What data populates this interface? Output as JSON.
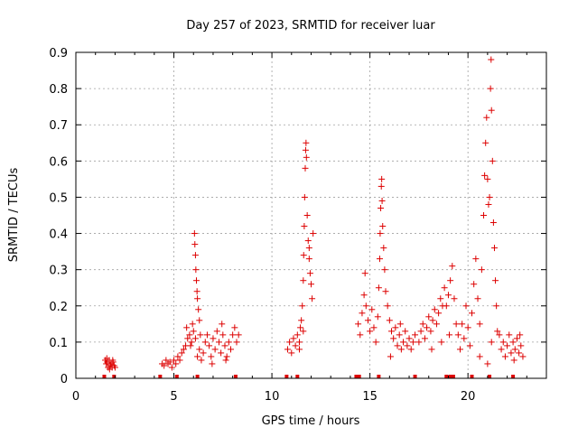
{
  "chart_data": {
    "type": "scatter",
    "title": "Day 257 of 2023, SRMTID for receiver luar",
    "xlabel": "GPS time / hours",
    "ylabel": "SRMTID / TECUs",
    "xlim": [
      0,
      24
    ],
    "ylim": [
      0,
      0.9
    ],
    "xticks": [
      0,
      5,
      10,
      15,
      20
    ],
    "xtick_labels": [
      "0",
      "5",
      "10",
      "15",
      "20"
    ],
    "yticks": [
      0,
      0.1,
      0.2,
      0.3,
      0.4,
      0.5,
      0.6,
      0.7,
      0.8,
      0.9
    ],
    "ytick_labels": [
      "0",
      "0.1",
      "0.2",
      "0.3",
      "0.4",
      "0.5",
      "0.6",
      "0.7",
      "0.8",
      "0.9"
    ],
    "grid": true,
    "marker": "+",
    "marker_color": "#dd0000",
    "series": [
      {
        "name": "SRMTID",
        "points": [
          [
            1.5,
            0.05
          ],
          [
            1.55,
            0.04
          ],
          [
            1.6,
            0.045
          ],
          [
            1.65,
            0.03
          ],
          [
            1.7,
            0.05
          ],
          [
            1.75,
            0.035
          ],
          [
            1.8,
            0.04
          ],
          [
            1.85,
            0.03
          ],
          [
            1.9,
            0.045
          ],
          [
            1.95,
            0.035
          ],
          [
            2.0,
            0.03
          ],
          [
            1.58,
            0.055
          ],
          [
            1.72,
            0.025
          ],
          [
            1.88,
            0.05
          ],
          [
            4.4,
            0.04
          ],
          [
            4.5,
            0.035
          ],
          [
            4.6,
            0.05
          ],
          [
            4.7,
            0.04
          ],
          [
            4.8,
            0.045
          ],
          [
            4.9,
            0.03
          ],
          [
            5.0,
            0.05
          ],
          [
            5.1,
            0.04
          ],
          [
            5.2,
            0.06
          ],
          [
            5.3,
            0.05
          ],
          [
            5.4,
            0.07
          ],
          [
            5.5,
            0.08
          ],
          [
            5.6,
            0.09
          ],
          [
            5.7,
            0.11
          ],
          [
            5.8,
            0.12
          ],
          [
            5.9,
            0.1
          ],
          [
            6.0,
            0.13
          ],
          [
            5.65,
            0.14
          ],
          [
            5.85,
            0.09
          ],
          [
            5.95,
            0.15
          ],
          [
            6.05,
            0.4
          ],
          [
            6.07,
            0.37
          ],
          [
            6.1,
            0.34
          ],
          [
            6.12,
            0.3
          ],
          [
            6.15,
            0.27
          ],
          [
            6.18,
            0.24
          ],
          [
            6.2,
            0.22
          ],
          [
            6.25,
            0.19
          ],
          [
            6.3,
            0.16
          ],
          [
            6.1,
            0.11
          ],
          [
            6.2,
            0.06
          ],
          [
            6.3,
            0.08
          ],
          [
            6.35,
            0.12
          ],
          [
            6.4,
            0.05
          ],
          [
            6.5,
            0.07
          ],
          [
            6.6,
            0.1
          ],
          [
            6.7,
            0.12
          ],
          [
            6.8,
            0.09
          ],
          [
            6.9,
            0.06
          ],
          [
            7.0,
            0.11
          ],
          [
            7.1,
            0.08
          ],
          [
            7.2,
            0.13
          ],
          [
            7.3,
            0.1
          ],
          [
            7.4,
            0.07
          ],
          [
            7.5,
            0.12
          ],
          [
            7.6,
            0.09
          ],
          [
            7.7,
            0.06
          ],
          [
            7.8,
            0.1
          ],
          [
            7.9,
            0.08
          ],
          [
            8.0,
            0.12
          ],
          [
            8.1,
            0.14
          ],
          [
            8.2,
            0.1
          ],
          [
            8.3,
            0.12
          ],
          [
            7.45,
            0.15
          ],
          [
            6.95,
            0.04
          ],
          [
            7.65,
            0.05
          ],
          [
            10.8,
            0.08
          ],
          [
            10.9,
            0.1
          ],
          [
            11.0,
            0.07
          ],
          [
            11.1,
            0.11
          ],
          [
            11.2,
            0.09
          ],
          [
            11.3,
            0.12
          ],
          [
            11.4,
            0.1
          ],
          [
            11.45,
            0.14
          ],
          [
            11.5,
            0.16
          ],
          [
            11.55,
            0.2
          ],
          [
            11.6,
            0.27
          ],
          [
            11.62,
            0.34
          ],
          [
            11.65,
            0.42
          ],
          [
            11.67,
            0.5
          ],
          [
            11.7,
            0.58
          ],
          [
            11.72,
            0.63
          ],
          [
            11.74,
            0.65
          ],
          [
            11.76,
            0.61
          ],
          [
            11.8,
            0.45
          ],
          [
            11.85,
            0.38
          ],
          [
            11.9,
            0.33
          ],
          [
            11.95,
            0.29
          ],
          [
            12.0,
            0.26
          ],
          [
            12.05,
            0.22
          ],
          [
            12.1,
            0.4
          ],
          [
            11.9,
            0.36
          ],
          [
            11.6,
            0.13
          ],
          [
            11.4,
            0.08
          ],
          [
            14.4,
            0.15
          ],
          [
            14.5,
            0.12
          ],
          [
            14.6,
            0.18
          ],
          [
            14.7,
            0.23
          ],
          [
            14.75,
            0.29
          ],
          [
            14.8,
            0.2
          ],
          [
            14.9,
            0.16
          ],
          [
            15.0,
            0.13
          ],
          [
            15.1,
            0.19
          ],
          [
            15.2,
            0.14
          ],
          [
            15.3,
            0.1
          ],
          [
            15.4,
            0.17
          ],
          [
            15.45,
            0.25
          ],
          [
            15.5,
            0.33
          ],
          [
            15.52,
            0.4
          ],
          [
            15.55,
            0.47
          ],
          [
            15.58,
            0.53
          ],
          [
            15.6,
            0.55
          ],
          [
            15.62,
            0.49
          ],
          [
            15.65,
            0.42
          ],
          [
            15.7,
            0.36
          ],
          [
            15.75,
            0.3
          ],
          [
            15.8,
            0.24
          ],
          [
            15.9,
            0.2
          ],
          [
            16.0,
            0.16
          ],
          [
            16.1,
            0.13
          ],
          [
            16.2,
            0.11
          ],
          [
            16.3,
            0.14
          ],
          [
            16.4,
            0.09
          ],
          [
            16.5,
            0.12
          ],
          [
            16.6,
            0.08
          ],
          [
            16.7,
            0.1
          ],
          [
            16.8,
            0.13
          ],
          [
            16.9,
            0.09
          ],
          [
            17.0,
            0.11
          ],
          [
            17.1,
            0.08
          ],
          [
            17.2,
            0.1
          ],
          [
            17.3,
            0.12
          ],
          [
            16.05,
            0.06
          ],
          [
            16.55,
            0.15
          ],
          [
            17.5,
            0.1
          ],
          [
            17.6,
            0.13
          ],
          [
            17.7,
            0.15
          ],
          [
            17.8,
            0.11
          ],
          [
            17.9,
            0.14
          ],
          [
            18.0,
            0.17
          ],
          [
            18.1,
            0.13
          ],
          [
            18.2,
            0.16
          ],
          [
            18.3,
            0.19
          ],
          [
            18.4,
            0.15
          ],
          [
            18.5,
            0.18
          ],
          [
            18.6,
            0.22
          ],
          [
            18.7,
            0.2
          ],
          [
            18.8,
            0.25
          ],
          [
            18.9,
            0.2
          ],
          [
            19.0,
            0.23
          ],
          [
            19.1,
            0.27
          ],
          [
            19.2,
            0.31
          ],
          [
            19.3,
            0.22
          ],
          [
            19.4,
            0.15
          ],
          [
            18.15,
            0.08
          ],
          [
            18.65,
            0.1
          ],
          [
            19.05,
            0.12
          ],
          [
            19.5,
            0.12
          ],
          [
            19.6,
            0.08
          ],
          [
            19.7,
            0.15
          ],
          [
            19.8,
            0.11
          ],
          [
            19.9,
            0.2
          ],
          [
            20.0,
            0.14
          ],
          [
            20.1,
            0.09
          ],
          [
            20.2,
            0.18
          ],
          [
            20.3,
            0.26
          ],
          [
            20.4,
            0.33
          ],
          [
            20.5,
            0.22
          ],
          [
            20.6,
            0.15
          ],
          [
            20.7,
            0.3
          ],
          [
            20.8,
            0.45
          ],
          [
            20.85,
            0.56
          ],
          [
            20.9,
            0.65
          ],
          [
            20.95,
            0.72
          ],
          [
            21.0,
            0.55
          ],
          [
            21.05,
            0.48
          ],
          [
            21.1,
            0.5
          ],
          [
            21.15,
            0.8
          ],
          [
            21.18,
            0.88
          ],
          [
            21.2,
            0.74
          ],
          [
            21.25,
            0.6
          ],
          [
            21.3,
            0.43
          ],
          [
            21.35,
            0.36
          ],
          [
            21.4,
            0.27
          ],
          [
            21.45,
            0.2
          ],
          [
            21.5,
            0.13
          ],
          [
            21.0,
            0.04
          ],
          [
            20.6,
            0.06
          ],
          [
            21.2,
            0.1
          ],
          [
            21.6,
            0.12
          ],
          [
            21.7,
            0.08
          ],
          [
            21.8,
            0.1
          ],
          [
            21.9,
            0.06
          ],
          [
            22.0,
            0.09
          ],
          [
            22.1,
            0.12
          ],
          [
            22.2,
            0.07
          ],
          [
            22.3,
            0.1
          ],
          [
            22.4,
            0.08
          ],
          [
            22.5,
            0.11
          ],
          [
            22.6,
            0.07
          ],
          [
            22.7,
            0.09
          ],
          [
            22.8,
            0.06
          ],
          [
            22.65,
            0.12
          ],
          [
            22.35,
            0.05
          ]
        ]
      }
    ],
    "baseline_marks_x": [
      1.45,
      1.95,
      4.3,
      5.15,
      6.2,
      8.15,
      10.75,
      11.3,
      14.3,
      14.45,
      15.45,
      17.3,
      18.9,
      19.1,
      19.25,
      20.2,
      21.1,
      22.3
    ]
  }
}
